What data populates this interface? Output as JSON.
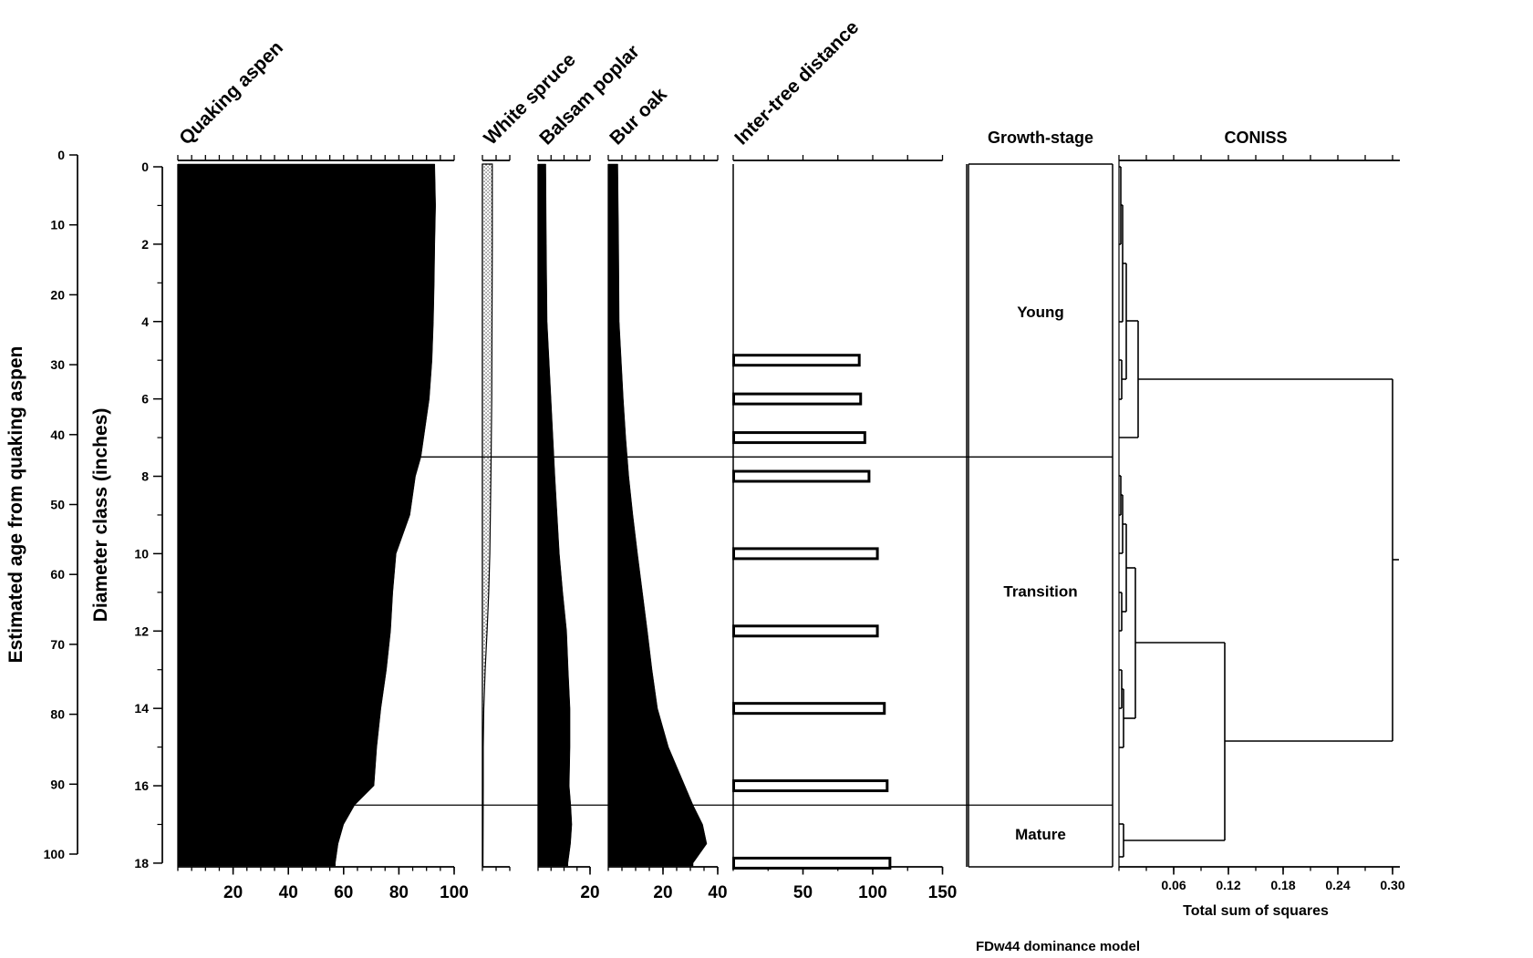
{
  "page": {
    "background": "#ffffff",
    "ink": "#000000"
  },
  "headers": {
    "growth_stage_label": "Growth-stage",
    "coniss_label": "CONISS"
  },
  "left_axes": {
    "age": {
      "title": "Estimated age from quaking aspen",
      "tick_values": [
        0,
        10,
        20,
        30,
        40,
        50,
        60,
        70,
        80,
        90,
        100
      ]
    },
    "diameter": {
      "title": "Diameter class (inches)",
      "tick_values": [
        0,
        2,
        4,
        6,
        8,
        10,
        12,
        14,
        16,
        18
      ],
      "minor_step": 1
    }
  },
  "footer": {
    "coniss_axis_title": "Total sum of squares",
    "caption": "FDw44 dominance model"
  },
  "chart_data": {
    "type": "area",
    "variant": "stratigraphic dominance diagram with CONISS dendrogram",
    "depth_unit": "diameter class (inches)",
    "depth_range": [
      0,
      18
    ],
    "age_range": [
      0,
      100
    ],
    "zone_boundaries_diameter": [
      7.5,
      16.5
    ],
    "panels": [
      {
        "id": "quaking-aspen",
        "title": "Quaking aspen",
        "type": "area",
        "style": "solid-black",
        "x_max": 100,
        "x_tick_labels": [
          20,
          40,
          60,
          80,
          100
        ],
        "x_minor_step": 5,
        "depths": [
          0,
          1,
          2,
          3,
          4,
          5,
          6,
          6.5,
          7,
          7.5,
          8,
          9,
          10,
          11,
          12,
          13,
          14,
          15,
          16,
          16.5,
          17,
          17.5,
          18
        ],
        "values": [
          93,
          93.3,
          93,
          92.8,
          92.5,
          92,
          91,
          90,
          89,
          88,
          86,
          84,
          79,
          77.8,
          77,
          75.5,
          73.5,
          72,
          71,
          64,
          60,
          58,
          57
        ]
      },
      {
        "id": "white-spruce",
        "title": "White spruce",
        "type": "area",
        "style": "stippled",
        "x_max": 10,
        "x_tick_labels": [],
        "x_minor_step": 5,
        "depths": [
          0,
          2,
          4,
          6,
          8,
          10,
          11,
          12,
          13,
          14,
          15,
          16,
          17,
          18
        ],
        "values": [
          3.6,
          3.6,
          3.5,
          3.4,
          3.1,
          2.7,
          2.3,
          1.7,
          1.0,
          0.5,
          0.3,
          0.3,
          0.25,
          0.2
        ]
      },
      {
        "id": "balsam-poplar",
        "title": "Balsam poplar",
        "type": "area",
        "style": "solid-black",
        "x_max": 20,
        "x_tick_labels": [
          20
        ],
        "x_minor_step": 5,
        "depths": [
          0,
          2,
          4,
          6,
          8,
          10,
          11,
          12,
          13,
          14,
          15,
          16,
          16.5,
          17,
          17.5,
          18
        ],
        "values": [
          3,
          3.2,
          3.5,
          5,
          6.5,
          8.2,
          9.5,
          11,
          11.6,
          12.3,
          12.3,
          12,
          12.6,
          13,
          12.5,
          11.5
        ]
      },
      {
        "id": "bur-oak",
        "title": "Bur oak",
        "type": "area",
        "style": "solid-black",
        "x_max": 40,
        "x_tick_labels": [
          20,
          40
        ],
        "x_minor_step": 5,
        "depths": [
          0,
          2,
          4,
          6,
          7,
          8,
          9,
          10,
          11,
          12,
          13,
          14,
          15,
          16,
          16.5,
          17,
          17.5,
          18
        ],
        "values": [
          3.5,
          3.8,
          4,
          5.5,
          6.4,
          7.5,
          9,
          10.7,
          12.5,
          14.3,
          16,
          18,
          22,
          28,
          31,
          34.5,
          36,
          31
        ]
      },
      {
        "id": "inter-tree-distance",
        "title": "Inter-tree distance",
        "type": "bar",
        "x_max": 150,
        "x_tick_labels": [
          50,
          100,
          150
        ],
        "x_minor_step": 25,
        "bars": [
          {
            "depth": 5,
            "value": 90
          },
          {
            "depth": 6,
            "value": 91
          },
          {
            "depth": 7,
            "value": 94
          },
          {
            "depth": 8,
            "value": 97
          },
          {
            "depth": 10,
            "value": 103
          },
          {
            "depth": 12,
            "value": 103
          },
          {
            "depth": 14,
            "value": 108
          },
          {
            "depth": 16,
            "value": 110
          },
          {
            "depth": 18,
            "value": 112
          }
        ]
      },
      {
        "id": "growth-stage",
        "title": "Growth-stage",
        "type": "table",
        "zones": [
          {
            "label": "Young",
            "from": 0,
            "to": 7.5
          },
          {
            "label": "Transition",
            "from": 7.5,
            "to": 16.5
          },
          {
            "label": "Mature",
            "from": 16.5,
            "to": 18
          }
        ]
      },
      {
        "id": "coniss",
        "title": "CONISS",
        "type": "line",
        "variant": "dendrogram",
        "x_axis_title": "Total sum of squares",
        "x_max": 0.3,
        "x_tick_labels": [
          "0.06",
          "0.12",
          "0.18",
          "0.24",
          "0.30"
        ],
        "x_minor_step": 0.03,
        "h_segments": [
          [
            0,
            0.002,
            183
          ],
          [
            0,
            0.002,
            268
          ],
          [
            0.002,
            0.004,
            225
          ],
          [
            0,
            0.004,
            353
          ],
          [
            0,
            0.003,
            395
          ],
          [
            0,
            0.003,
            438
          ],
          [
            0.003,
            0.008,
            416
          ],
          [
            0.004,
            0.008,
            289
          ],
          [
            0.008,
            0.021,
            352
          ],
          [
            0,
            0.021,
            480
          ],
          [
            0.021,
            0.3,
            416
          ],
          [
            0,
            0.002,
            522
          ],
          [
            0,
            0.002,
            565
          ],
          [
            0.002,
            0.004,
            543
          ],
          [
            0,
            0.004,
            607
          ],
          [
            0,
            0.003,
            650
          ],
          [
            0,
            0.003,
            692
          ],
          [
            0.003,
            0.008,
            671
          ],
          [
            0.004,
            0.008,
            575
          ],
          [
            0.008,
            0.018,
            623
          ],
          [
            0,
            0.003,
            735
          ],
          [
            0,
            0.003,
            777
          ],
          [
            0.003,
            0.005,
            756
          ],
          [
            0,
            0.005,
            820
          ],
          [
            0.005,
            0.018,
            788
          ],
          [
            0.018,
            0.116,
            705
          ],
          [
            0,
            0.005,
            904
          ],
          [
            0,
            0.005,
            940
          ],
          [
            0.005,
            0.116,
            922
          ],
          [
            0.116,
            0.3,
            813
          ],
          [
            0.3,
            0.307,
            614
          ]
        ],
        "v_segments": [
          [
            0.002,
            183,
            268
          ],
          [
            0.004,
            225,
            353
          ],
          [
            0.003,
            395,
            438
          ],
          [
            0.008,
            289,
            416
          ],
          [
            0.021,
            352,
            480
          ],
          [
            0.002,
            522,
            565
          ],
          [
            0.004,
            543,
            607
          ],
          [
            0.003,
            650,
            692
          ],
          [
            0.008,
            575,
            671
          ],
          [
            0.003,
            735,
            777
          ],
          [
            0.005,
            756,
            820
          ],
          [
            0.018,
            623,
            788
          ],
          [
            0.005,
            904,
            940
          ],
          [
            0.116,
            705,
            922
          ],
          [
            0.3,
            416,
            813
          ]
        ]
      }
    ]
  }
}
